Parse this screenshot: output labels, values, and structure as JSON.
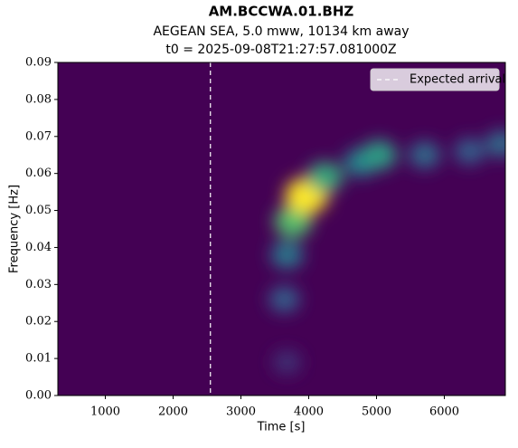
{
  "chart_data": {
    "type": "spectrogram",
    "title": "AM.BCCWA.01.BHZ",
    "subtitle": [
      "AEGEAN SEA, 5.0 mww, 10134 km away",
      "t0 = 2025-09-08T21:27:57.081000Z"
    ],
    "x_label": "Time [s]",
    "y_label": "Frequency [Hz]",
    "xlim": [
      300,
      6900
    ],
    "xticks": [
      1000,
      2000,
      3000,
      4000,
      5000,
      6000
    ],
    "ylim": [
      0,
      0.09
    ],
    "yticks": [
      {
        "value": 0,
        "label": "0.00"
      },
      {
        "value": 0.01,
        "label": "0.01"
      },
      {
        "value": 0.02,
        "label": "0.02"
      },
      {
        "value": 0.03,
        "label": "0.03"
      },
      {
        "value": 0.04,
        "label": "0.04"
      },
      {
        "value": 0.05,
        "label": "0.05"
      },
      {
        "value": 0.06,
        "label": "0.06"
      },
      {
        "value": 0.07,
        "label": "0.07"
      },
      {
        "value": 0.08,
        "label": "0.08"
      },
      {
        "value": 0.09,
        "label": "0.09"
      }
    ],
    "energy": {
      "x": [
        3680,
        3640,
        3680,
        3770,
        3970,
        4240,
        4770,
        5040,
        5710,
        6370,
        6840
      ],
      "y": [
        0.009,
        0.026,
        0.038,
        0.047,
        0.054,
        0.059,
        0.063,
        0.065,
        0.065,
        0.066,
        0.068
      ],
      "intensity": [
        0.15,
        0.3,
        0.4,
        0.7,
        1,
        0.6,
        0.45,
        0.55,
        0.35,
        0.3,
        0.35
      ]
    },
    "expected_arrival": {
      "name": "Expected arrival",
      "x": 2550,
      "color": "#ffffff"
    },
    "legend": "upper right"
  }
}
